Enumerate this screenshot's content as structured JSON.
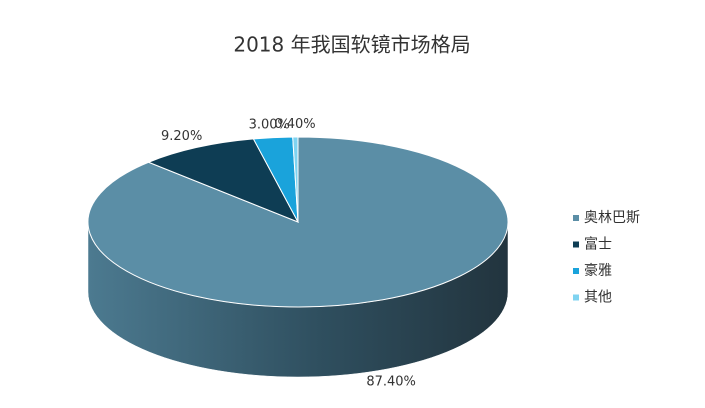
{
  "chart_data": {
    "type": "pie3d",
    "title": "2018 年我国软镜市场格局",
    "categories": [
      "奥林巴斯",
      "富士",
      "豪雅",
      "其他"
    ],
    "values": [
      87.4,
      9.2,
      3.0,
      0.4
    ],
    "value_labels": [
      "87.40%",
      "9.20%",
      "3.00%",
      "0.40%"
    ],
    "colors": [
      "#5b8ea6",
      "#0e3d54",
      "#1aa3db",
      "#7fd3f0"
    ],
    "legend": "right"
  }
}
